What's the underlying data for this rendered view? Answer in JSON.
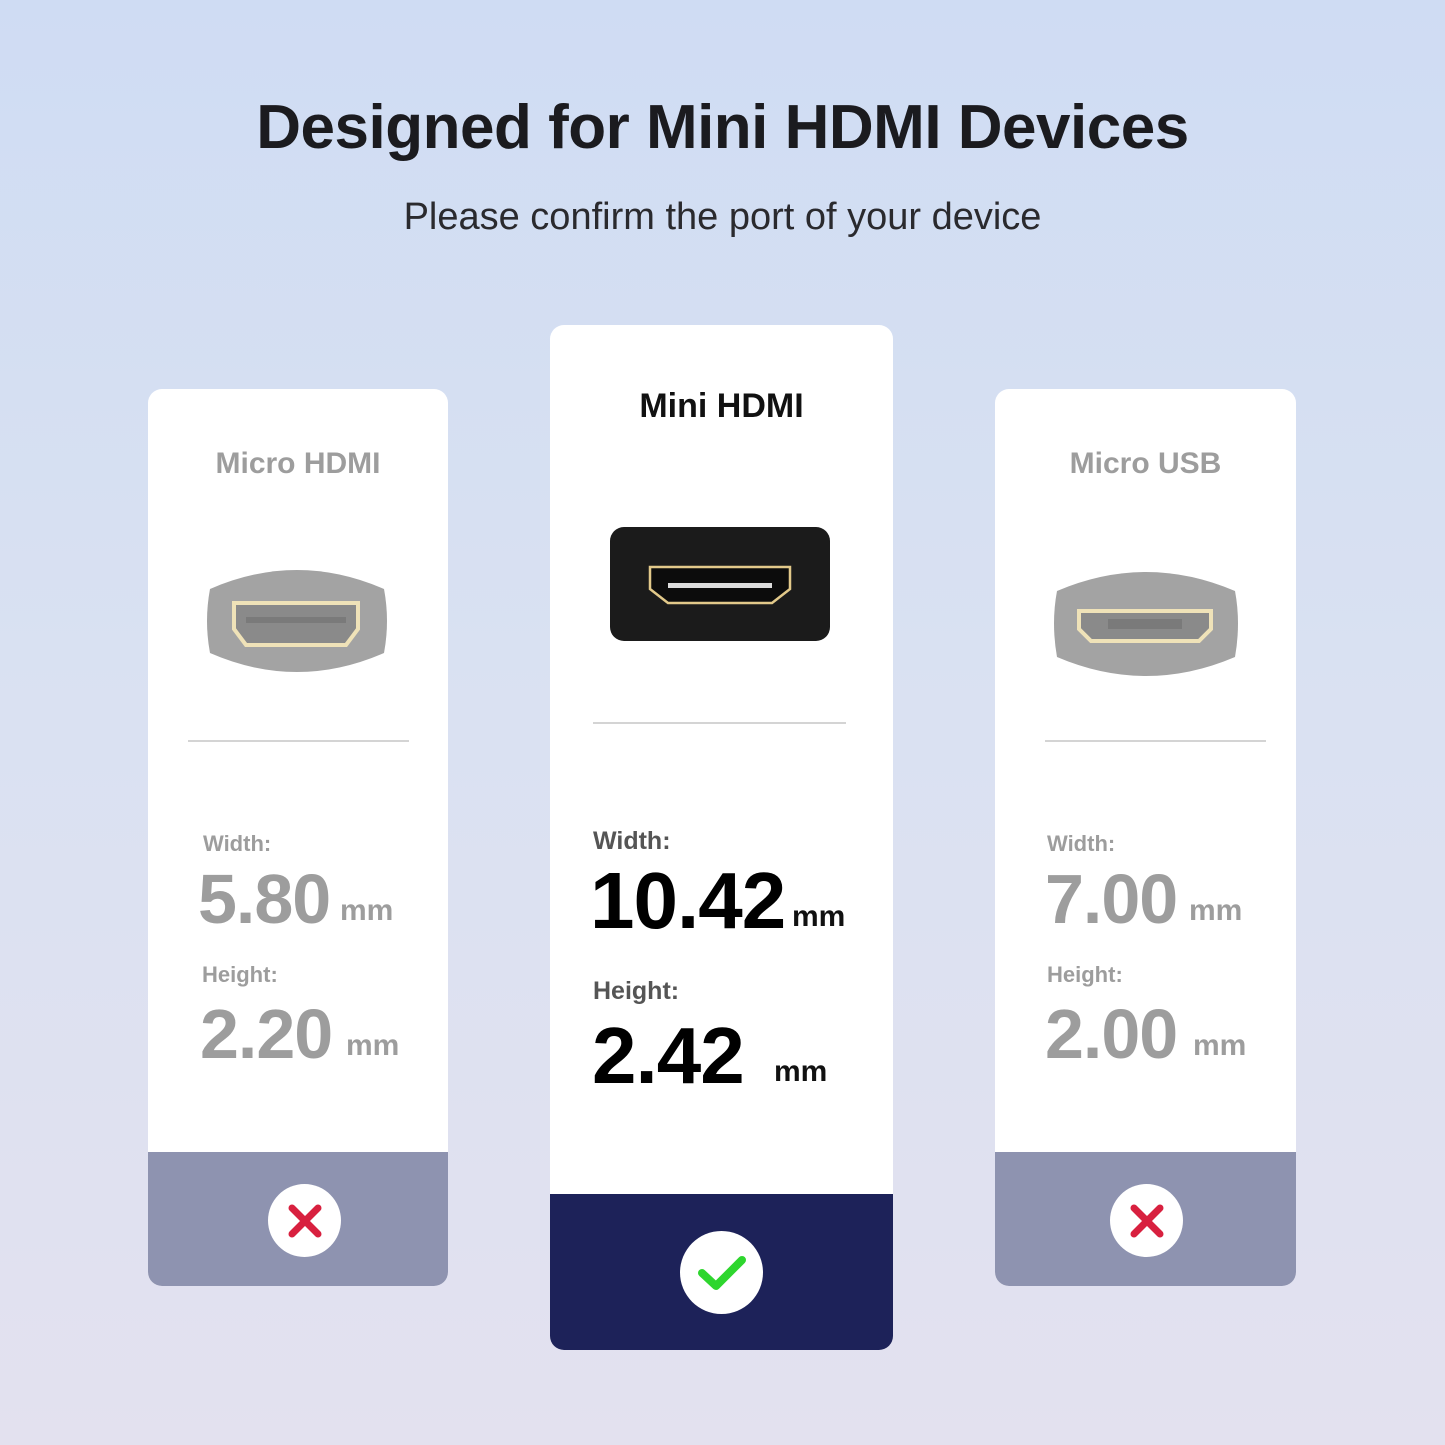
{
  "header": {
    "title": "Designed for Mini HDMI Devices",
    "subtitle": "Please confirm the port of your device"
  },
  "cards": [
    {
      "name": "Micro HDMI",
      "width_label": "Width:",
      "width_value": "5.80",
      "width_unit": "mm",
      "height_label": "Height:",
      "height_value": "2.20",
      "height_unit": "mm",
      "status_icon": "x-icon",
      "compatible": false
    },
    {
      "name": "Mini HDMI",
      "width_label": "Width:",
      "width_value": "10.42",
      "width_unit": "mm",
      "height_label": "Height:",
      "height_value": "2.42",
      "height_unit": "mm",
      "status_icon": "check-icon",
      "compatible": true
    },
    {
      "name": "Micro USB",
      "width_label": "Width:",
      "width_value": "7.00",
      "width_unit": "mm",
      "height_label": "Height:",
      "height_value": "2.00",
      "height_unit": "mm",
      "status_icon": "x-icon",
      "compatible": false
    }
  ],
  "colors": {
    "selected_footer": "#1d2259",
    "unselected_footer": "#8e93b0",
    "check": "#2ed62e",
    "cross": "#d8203f"
  }
}
